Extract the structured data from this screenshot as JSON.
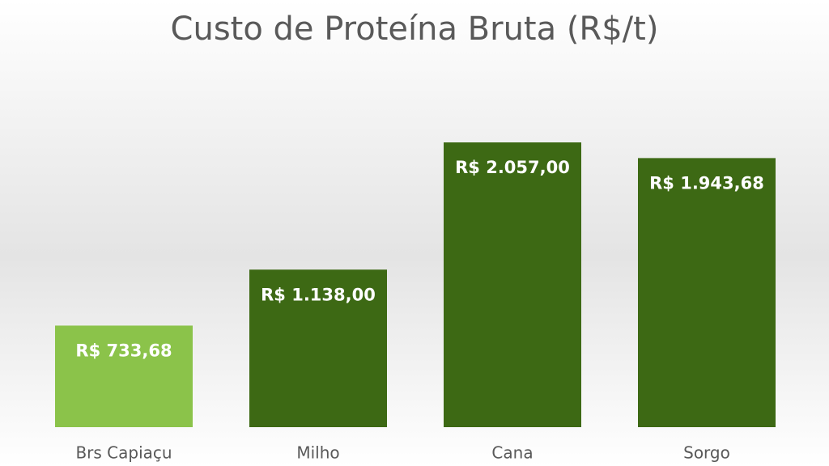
{
  "chart_data": {
    "type": "bar",
    "title": "Custo de Proteína Bruta (R$/t)",
    "categories": [
      "Brs Capiaçu",
      "Milho",
      "Cana",
      "Sorgo"
    ],
    "values": [
      733.68,
      1138.0,
      2057.0,
      1943.68
    ],
    "value_labels": [
      "R$ 733,68",
      "R$ 1.138,00",
      "R$ 2.057,00",
      "R$ 1.943,68"
    ],
    "colors": [
      "#8bc34a",
      "#3d6914",
      "#3d6914",
      "#3d6914"
    ]
  }
}
